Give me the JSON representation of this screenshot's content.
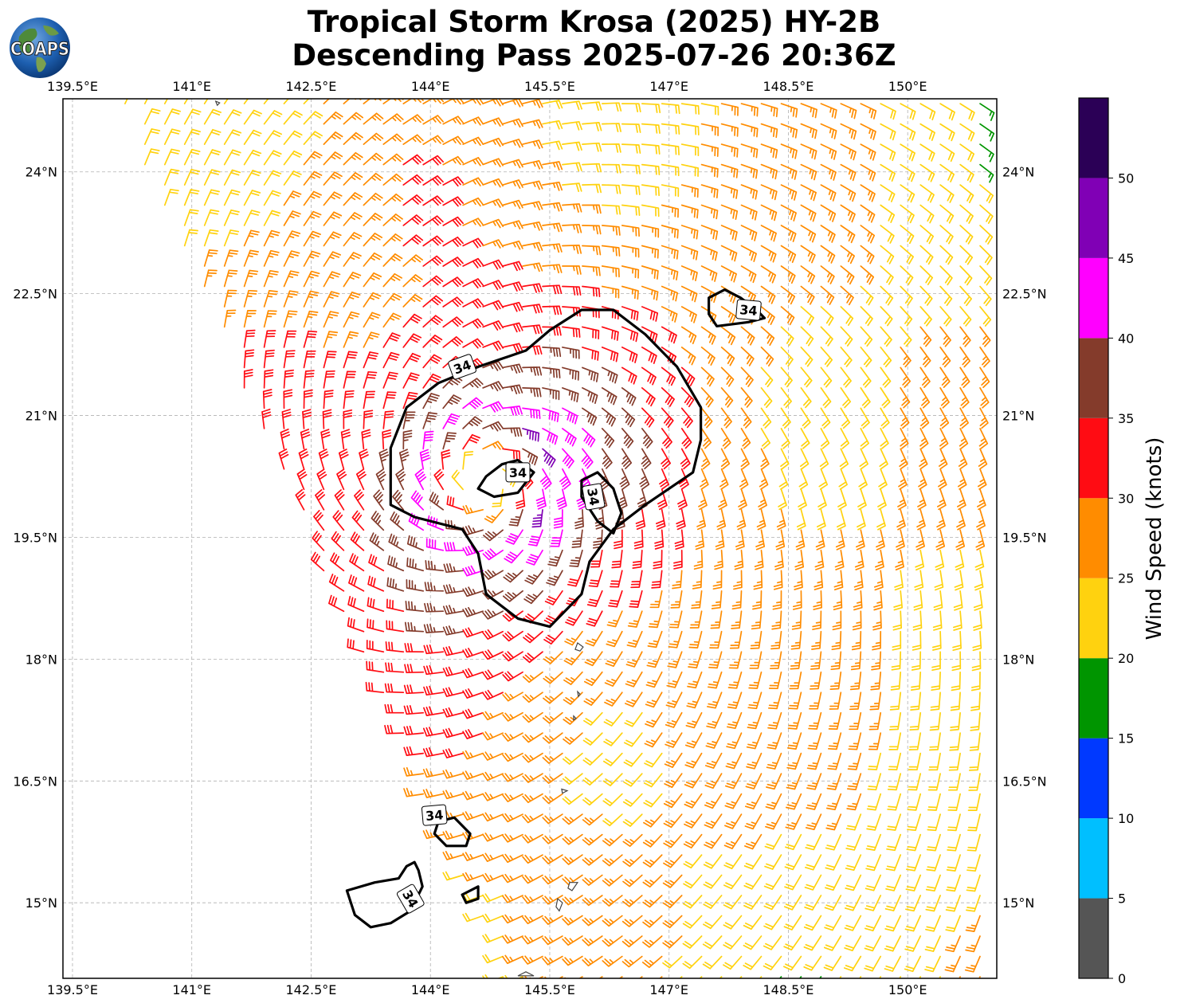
{
  "title_line1": "Tropical Storm Krosa (2025) HY-2B",
  "title_line2": "Descending Pass 2025-07-26 20:36Z",
  "logo_text": "COAPS",
  "map": {
    "lon_range": [
      139.38,
      151.12
    ],
    "lat_range": [
      14.07,
      24.9
    ],
    "lon_ticks": [
      139.5,
      141.0,
      142.5,
      144.0,
      145.5,
      147.0,
      148.5,
      150.0
    ],
    "lon_tick_labels": [
      "139.5°E",
      "141°E",
      "142.5°E",
      "144°E",
      "145.5°E",
      "147°E",
      "148.5°E",
      "150°E"
    ],
    "lat_ticks": [
      24.0,
      22.5,
      21.0,
      19.5,
      18.0,
      16.5,
      15.0
    ],
    "lat_tick_labels": [
      "24°N",
      "22.5°N",
      "21°N",
      "19.5°N",
      "18°N",
      "16.5°N",
      "15°N"
    ],
    "gridlines": true,
    "storm_center": [
      144.7,
      20.2
    ],
    "contour_level": "34",
    "contour_label_text": [
      "34",
      "34",
      "34",
      "34",
      "34",
      "34"
    ],
    "contour_34kt": [
      [
        [
          144.6,
          21.6
        ],
        [
          145.2,
          21.8
        ],
        [
          145.5,
          22.05
        ],
        [
          145.9,
          22.3
        ],
        [
          146.3,
          22.3
        ],
        [
          146.7,
          22.0
        ],
        [
          147.1,
          21.6
        ],
        [
          147.4,
          21.1
        ],
        [
          147.4,
          20.7
        ],
        [
          147.3,
          20.3
        ],
        [
          146.7,
          19.9
        ],
        [
          146.3,
          19.6
        ],
        [
          146.0,
          19.2
        ],
        [
          145.9,
          18.8
        ],
        [
          145.5,
          18.4
        ],
        [
          145.1,
          18.5
        ],
        [
          144.7,
          18.8
        ],
        [
          144.6,
          19.3
        ],
        [
          144.4,
          19.6
        ],
        [
          143.8,
          19.75
        ],
        [
          143.5,
          19.9
        ],
        [
          143.5,
          20.6
        ],
        [
          143.7,
          21.1
        ],
        [
          144.1,
          21.4
        ]
      ],
      [
        [
          144.9,
          20.4
        ],
        [
          145.1,
          20.45
        ],
        [
          145.3,
          20.3
        ],
        [
          145.1,
          20.05
        ],
        [
          144.8,
          20.0
        ],
        [
          144.6,
          20.1
        ],
        [
          144.7,
          20.25
        ]
      ],
      [
        [
          146.1,
          20.3
        ],
        [
          146.3,
          20.1
        ],
        [
          146.4,
          19.8
        ],
        [
          146.3,
          19.55
        ],
        [
          146.1,
          19.7
        ],
        [
          145.9,
          20.0
        ],
        [
          145.9,
          20.2
        ]
      ],
      [
        [
          147.5,
          22.45
        ],
        [
          147.7,
          22.55
        ],
        [
          147.9,
          22.45
        ],
        [
          148.1,
          22.3
        ],
        [
          148.2,
          22.2
        ],
        [
          148.0,
          22.15
        ],
        [
          147.6,
          22.1
        ],
        [
          147.5,
          22.25
        ]
      ],
      [
        [
          144.1,
          16.0
        ],
        [
          144.3,
          16.05
        ],
        [
          144.5,
          15.85
        ],
        [
          144.45,
          15.7
        ],
        [
          144.2,
          15.7
        ],
        [
          144.05,
          15.85
        ]
      ],
      [
        [
          144.4,
          15.1
        ],
        [
          144.6,
          15.2
        ],
        [
          144.6,
          15.05
        ],
        [
          144.45,
          15.0
        ]
      ],
      [
        [
          142.95,
          15.15
        ],
        [
          143.3,
          15.25
        ],
        [
          143.6,
          15.3
        ],
        [
          143.7,
          15.45
        ],
        [
          143.8,
          15.5
        ],
        [
          143.85,
          15.4
        ],
        [
          143.9,
          15.2
        ],
        [
          143.75,
          14.9
        ],
        [
          143.5,
          14.75
        ],
        [
          143.25,
          14.7
        ],
        [
          143.05,
          14.85
        ]
      ]
    ],
    "islands": [
      [
        [
          141.3,
          24.87
        ],
        [
          141.35,
          24.85
        ],
        [
          141.32,
          24.82
        ]
      ],
      [
        [
          145.85,
          18.2
        ],
        [
          145.92,
          18.15
        ],
        [
          145.88,
          18.1
        ],
        [
          145.82,
          18.12
        ]
      ],
      [
        [
          145.85,
          17.6
        ],
        [
          145.88,
          17.57
        ],
        [
          145.86,
          17.54
        ]
      ],
      [
        [
          145.8,
          17.3
        ],
        [
          145.83,
          17.27
        ],
        [
          145.8,
          17.25
        ]
      ],
      [
        [
          145.65,
          16.4
        ],
        [
          145.72,
          16.38
        ],
        [
          145.66,
          16.35
        ]
      ],
      [
        [
          145.75,
          15.25
        ],
        [
          145.85,
          15.25
        ],
        [
          145.78,
          15.15
        ],
        [
          145.73,
          15.18
        ]
      ],
      [
        [
          145.6,
          15.05
        ],
        [
          145.66,
          15.0
        ],
        [
          145.62,
          14.9
        ],
        [
          145.58,
          14.95
        ]
      ],
      [
        [
          145.1,
          14.1
        ],
        [
          145.2,
          14.15
        ],
        [
          145.3,
          14.1
        ]
      ]
    ]
  },
  "colorbar": {
    "label": "Wind Speed (knots)",
    "bounds": [
      0,
      5,
      10,
      15,
      20,
      25,
      30,
      35,
      40,
      45,
      50,
      55
    ],
    "tick_labels": [
      "0",
      "5",
      "10",
      "15",
      "20",
      "25",
      "30",
      "35",
      "40",
      "45",
      "50"
    ],
    "colors": [
      "#555555",
      "#00bfff",
      "#0039ff",
      "#009500",
      "#ffd20f",
      "#ff8c00",
      "#ff0c13",
      "#843b2b",
      "#ff00ff",
      "#8000b5",
      "#2b0056"
    ]
  },
  "wind_model": {
    "grid_step_deg": 0.25,
    "swath_center_lon": 148.5,
    "swath_half_width_deg": 5.8,
    "rmax_deg": 0.8,
    "vmax_kt": 45,
    "env_kt": 14,
    "inflow_deg": 20
  }
}
